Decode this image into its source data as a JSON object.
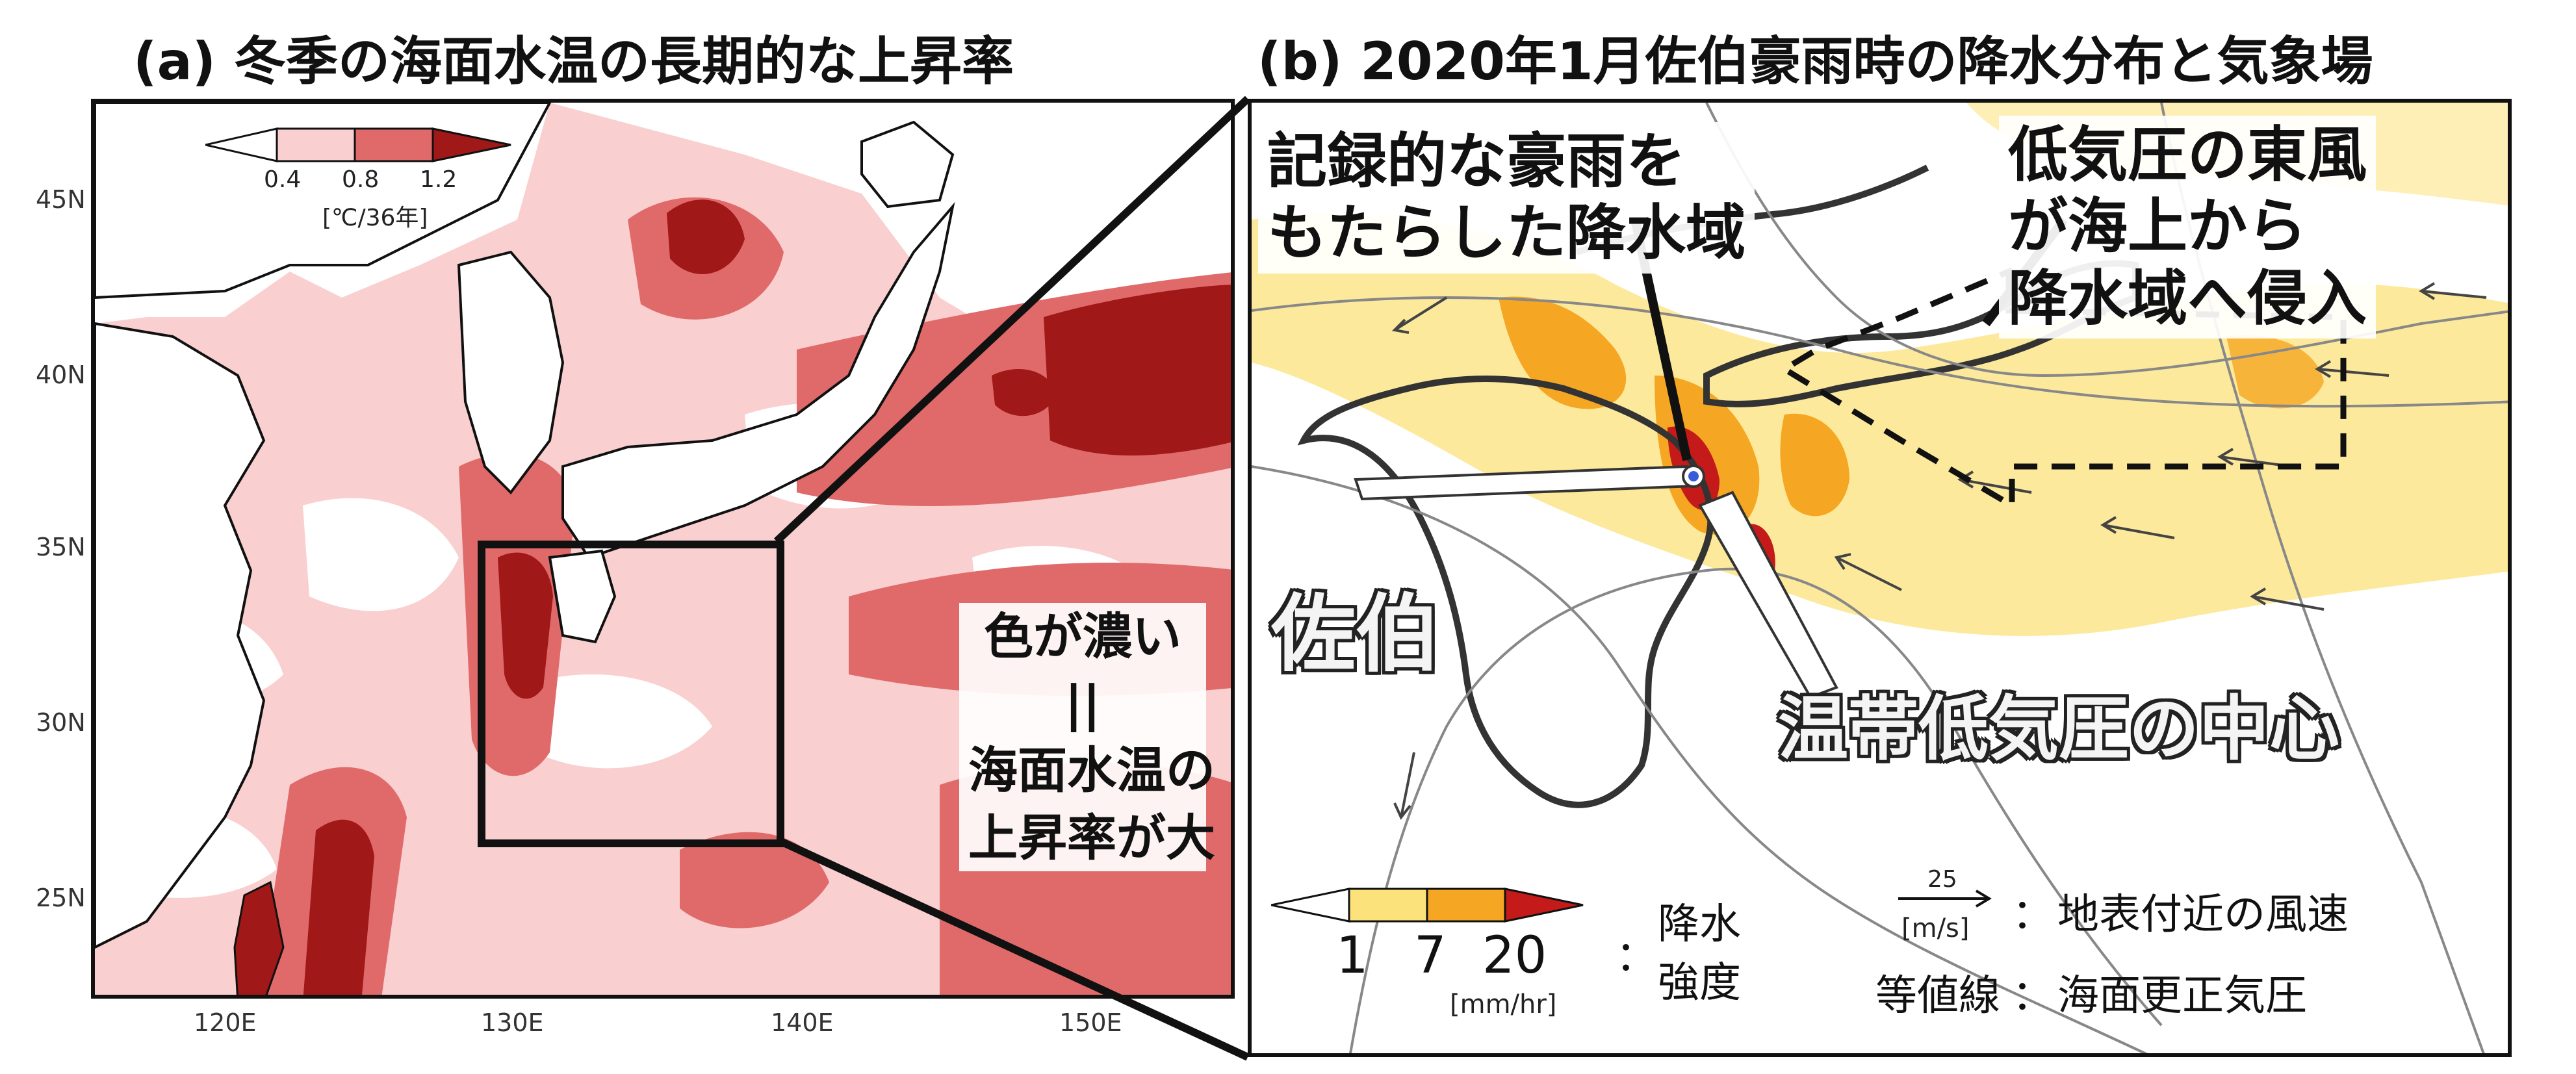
{
  "panel_a": {
    "title": "(a) 冬季の海面水温の長期的な上昇率",
    "lat_ticks": [
      "45N",
      "40N",
      "35N",
      "30N",
      "25N"
    ],
    "lon_ticks": [
      "120E",
      "130E",
      "140E",
      "150E"
    ],
    "legend": {
      "levels": [
        "0.4",
        "0.8",
        "1.2"
      ],
      "unit": "[℃/36年]",
      "colors": [
        "#ffffff",
        "#f9cfcf",
        "#e06a6a",
        "#a11818"
      ]
    },
    "annotation": {
      "line1": "色が濃い",
      "line2": "||",
      "line3": "海面水温の",
      "line4": "上昇率が大"
    }
  },
  "panel_b": {
    "title": "(b) 2020年1月佐伯豪雨時の降水分布と気象場",
    "annotation_rain": {
      "line1": "記録的な豪雨を",
      "line2": "もたらした降水域"
    },
    "annotation_wind": {
      "line1": "低気圧の東風",
      "line2": "が海上から",
      "line3": "降水域へ侵入"
    },
    "label_saiki": "佐伯",
    "label_center": "温帯低気圧の中心",
    "legend_precip": {
      "levels": [
        "1",
        "7",
        "20"
      ],
      "unit": "[mm/hr]",
      "label_line1": "降水",
      "label_line2": "強度",
      "colors": [
        "#ffffff",
        "#fbe27a",
        "#f5a623",
        "#c41a1a"
      ]
    },
    "legend_wind": {
      "ref_value": "25",
      "unit": "[m/s]",
      "label": "地表付近の風速"
    },
    "legend_contour": {
      "label_key": "等値線",
      "label": "海面更正気圧"
    },
    "colon": "："
  }
}
